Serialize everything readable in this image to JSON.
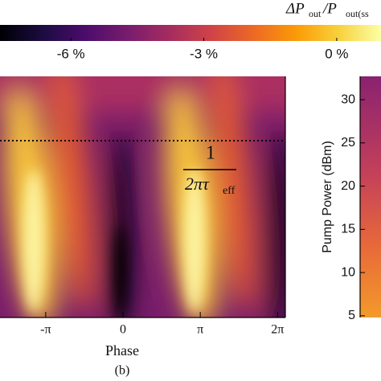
{
  "chart_data": [
    {
      "type": "colorbar",
      "colormap": "inferno",
      "title": {
        "delta": "ΔP",
        "sub1": "out",
        "slash": "/P",
        "sub2": "out(ss"
      },
      "xlim": [
        -7.6,
        1.0
      ],
      "xticks": [
        {
          "value": -6,
          "label": "-6 %"
        },
        {
          "value": -3,
          "label": "-3 %"
        },
        {
          "value": 0,
          "label": "0 %"
        }
      ]
    },
    {
      "type": "heatmap",
      "xlabel": "Phase",
      "panel_label": "(b)",
      "xlim": [
        -5.0,
        6.6
      ],
      "xticks": [
        {
          "value": -3.14159,
          "label": "-π"
        },
        {
          "value": 0,
          "label": "0"
        },
        {
          "value": 3.14159,
          "label": "π"
        },
        {
          "value": 6.28319,
          "label": "2π"
        }
      ],
      "annotation": {
        "numerator": "1",
        "denominator": "2πτ",
        "denominator_sub": "eff"
      }
    },
    {
      "type": "heatmap",
      "ylabel": "Pump Power (dBm)",
      "ylim": [
        4.8,
        32.7
      ],
      "yticks": [
        5,
        10,
        15,
        20,
        25,
        30
      ]
    }
  ]
}
